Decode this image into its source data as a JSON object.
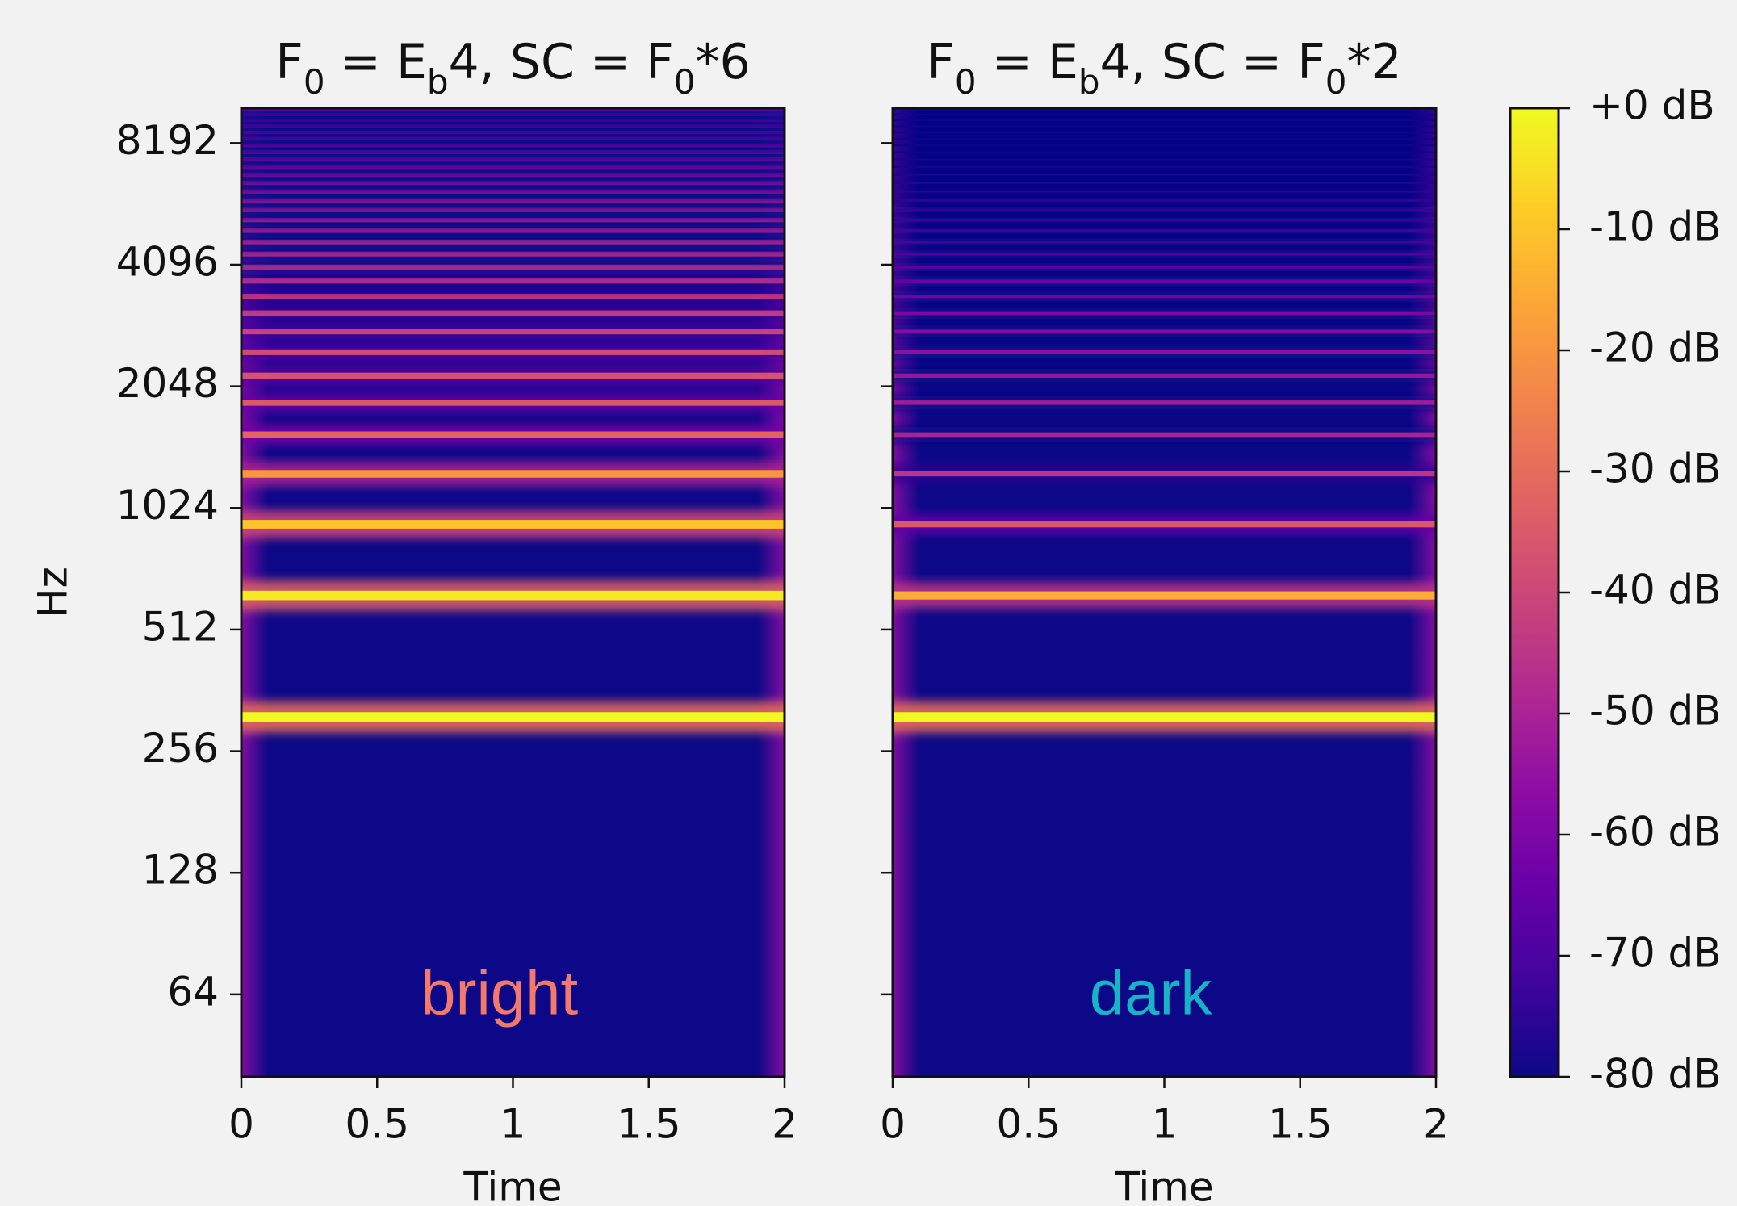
{
  "chart_data": [
    {
      "type": "spectrogram",
      "title": [
        {
          "text": "F"
        },
        {
          "text": "0",
          "sub": true
        },
        {
          "text": " = E"
        },
        {
          "text": "b",
          "sub": true
        },
        {
          "text": "4, SC = F"
        },
        {
          "text": "0",
          "sub": true
        },
        {
          "text": "*6"
        }
      ],
      "xlabel": "Time",
      "ylabel": "Hz",
      "xlim": [
        0,
        2
      ],
      "xticks": [
        0,
        0.5,
        1,
        1.5,
        2
      ],
      "ylim": [
        40,
        10000
      ],
      "log_base": 2,
      "yticks": [
        64,
        128,
        256,
        512,
        1024,
        2048,
        4096,
        8192
      ],
      "ytick_labels": true,
      "colormap": "plasma",
      "harmonic_hz": [
        311,
        622,
        933,
        1244,
        1555,
        1866,
        2177,
        2488,
        2799,
        3110,
        3421,
        3732,
        4043,
        4354,
        4665,
        4976,
        5287,
        5598,
        5909,
        6220,
        6531,
        6842,
        7153,
        7464,
        7775,
        8086,
        8397,
        8708,
        9019,
        9330,
        9641,
        9952
      ],
      "harmonic_db": [
        0,
        -3,
        -10,
        -20,
        -32,
        -35,
        -37,
        -39,
        -41,
        -43,
        -45,
        -46,
        -47,
        -48,
        -49,
        -50,
        -51,
        -52,
        -53,
        -54,
        -55,
        -56,
        -57,
        -58,
        -59,
        -60,
        -61,
        -62,
        -63,
        -64,
        -65,
        -66
      ],
      "annotation": "bright",
      "annotation_color": "#f4796b"
    },
    {
      "type": "spectrogram",
      "title": [
        {
          "text": "F"
        },
        {
          "text": "0",
          "sub": true
        },
        {
          "text": " = E"
        },
        {
          "text": "b",
          "sub": true
        },
        {
          "text": "4, SC = F"
        },
        {
          "text": "0",
          "sub": true
        },
        {
          "text": "*2"
        }
      ],
      "xlabel": "Time",
      "xlim": [
        0,
        2
      ],
      "xticks": [
        0,
        0.5,
        1,
        1.5,
        2
      ],
      "ylim": [
        40,
        10000
      ],
      "log_base": 2,
      "yticks": [
        64,
        128,
        256,
        512,
        1024,
        2048,
        4096,
        8192
      ],
      "ytick_labels": false,
      "colormap": "plasma",
      "harmonic_hz": [
        311,
        622,
        933,
        1244,
        1555,
        1866,
        2177,
        2488,
        2799,
        3110,
        3421,
        3732,
        4043,
        4354,
        4665,
        4976,
        5287,
        5598,
        5909,
        6220,
        6531,
        6842,
        7153,
        7464,
        7775,
        8086,
        8397,
        8708,
        9019,
        9330,
        9641,
        9952
      ],
      "harmonic_db": [
        0,
        -15,
        -35,
        -45,
        -50,
        -52,
        -54,
        -56,
        -58,
        -60,
        -62,
        -64,
        -66,
        -68,
        -70,
        -71,
        -72,
        -73,
        -74,
        -75,
        -76,
        -77,
        -78,
        -78,
        -79,
        -79,
        -79,
        -79,
        -79,
        -79,
        -79,
        -79
      ],
      "annotation": "dark",
      "annotation_color": "#17b3c6"
    },
    {
      "type": "colorbar",
      "colormap": "plasma",
      "ylim": [
        -80,
        0
      ],
      "yticks": [
        {
          "value": 0,
          "label": "+0 dB"
        },
        {
          "value": -10,
          "label": "-10 dB"
        },
        {
          "value": -20,
          "label": "-20 dB"
        },
        {
          "value": -30,
          "label": "-30 dB"
        },
        {
          "value": -40,
          "label": "-40 dB"
        },
        {
          "value": -50,
          "label": "-50 dB"
        },
        {
          "value": -60,
          "label": "-60 dB"
        },
        {
          "value": -70,
          "label": "-70 dB"
        },
        {
          "value": -80,
          "label": "-80 dB"
        }
      ]
    }
  ]
}
